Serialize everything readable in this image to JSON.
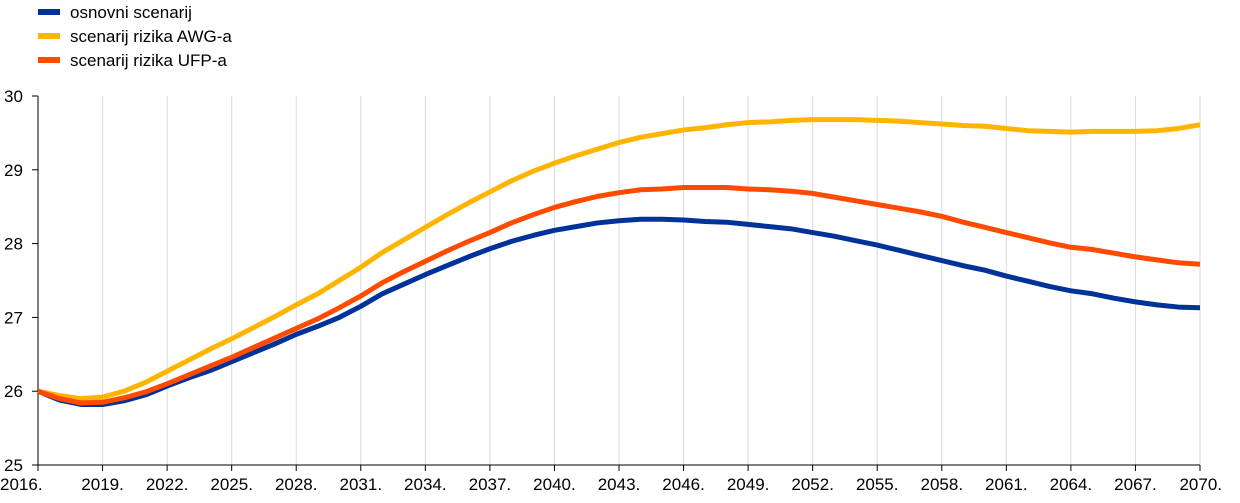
{
  "chart_data": {
    "type": "line",
    "title": "",
    "xlabel": "",
    "ylabel": "",
    "xlim": [
      2016,
      2070
    ],
    "ylim": [
      25,
      30
    ],
    "yticks": [
      25,
      26,
      27,
      28,
      29,
      30
    ],
    "xticks": [
      2016,
      2019,
      2022,
      2025,
      2028,
      2031,
      2034,
      2037,
      2040,
      2043,
      2046,
      2049,
      2052,
      2055,
      2058,
      2061,
      2064,
      2067,
      2070
    ],
    "xtick_labels": [
      "2016.",
      "2019.",
      "2022.",
      "2025.",
      "2028.",
      "2031.",
      "2034.",
      "2037.",
      "2040.",
      "2043.",
      "2046.",
      "2049.",
      "2052.",
      "2055.",
      "2058.",
      "2061.",
      "2064.",
      "2067.",
      "2070."
    ],
    "ytick_labels": [
      "25",
      "26",
      "27",
      "28",
      "29",
      "30"
    ],
    "grid": "vertical",
    "legend_position": "top-left",
    "series": [
      {
        "name": "osnovni scenarij",
        "color": "#003299",
        "x": [
          2016,
          2017,
          2018,
          2019,
          2020,
          2021,
          2022,
          2023,
          2024,
          2025,
          2026,
          2027,
          2028,
          2029,
          2030,
          2031,
          2032,
          2033,
          2034,
          2035,
          2036,
          2037,
          2038,
          2039,
          2040,
          2041,
          2042,
          2043,
          2044,
          2045,
          2046,
          2047,
          2048,
          2049,
          2050,
          2051,
          2052,
          2053,
          2054,
          2055,
          2056,
          2057,
          2058,
          2059,
          2060,
          2061,
          2062,
          2063,
          2064,
          2065,
          2066,
          2067,
          2068,
          2069,
          2070
        ],
        "values": [
          26.0,
          25.88,
          25.82,
          25.82,
          25.87,
          25.95,
          26.07,
          26.18,
          26.28,
          26.4,
          26.52,
          26.64,
          26.77,
          26.88,
          27.0,
          27.15,
          27.32,
          27.45,
          27.58,
          27.7,
          27.82,
          27.93,
          28.03,
          28.11,
          28.18,
          28.23,
          28.28,
          28.31,
          28.33,
          28.33,
          28.32,
          28.3,
          28.29,
          28.26,
          28.23,
          28.2,
          28.15,
          28.1,
          28.04,
          27.98,
          27.91,
          27.84,
          27.77,
          27.7,
          27.64,
          27.56,
          27.49,
          27.42,
          27.36,
          27.32,
          27.26,
          27.21,
          27.17,
          27.14,
          27.13
        ]
      },
      {
        "name": "scenarij rizika AWG-a",
        "color": "#ffb400",
        "x": [
          2016,
          2017,
          2018,
          2019,
          2020,
          2021,
          2022,
          2023,
          2024,
          2025,
          2026,
          2027,
          2028,
          2029,
          2030,
          2031,
          2032,
          2033,
          2034,
          2035,
          2036,
          2037,
          2038,
          2039,
          2040,
          2041,
          2042,
          2043,
          2044,
          2045,
          2046,
          2047,
          2048,
          2049,
          2050,
          2051,
          2052,
          2053,
          2054,
          2055,
          2056,
          2057,
          2058,
          2059,
          2060,
          2061,
          2062,
          2063,
          2064,
          2065,
          2066,
          2067,
          2068,
          2069,
          2070
        ],
        "values": [
          26.0,
          25.94,
          25.9,
          25.92,
          26.0,
          26.12,
          26.27,
          26.42,
          26.57,
          26.71,
          26.86,
          27.01,
          27.17,
          27.32,
          27.5,
          27.68,
          27.88,
          28.05,
          28.22,
          28.39,
          28.55,
          28.7,
          28.85,
          28.98,
          29.09,
          29.19,
          29.28,
          29.37,
          29.44,
          29.49,
          29.54,
          29.57,
          29.61,
          29.64,
          29.65,
          29.67,
          29.68,
          29.68,
          29.68,
          29.67,
          29.66,
          29.64,
          29.62,
          29.6,
          29.59,
          29.56,
          29.53,
          29.52,
          29.51,
          29.52,
          29.52,
          29.52,
          29.53,
          29.56,
          29.61
        ]
      },
      {
        "name": "scenarij rizika UFP-a",
        "color": "#ff4b00",
        "x": [
          2016,
          2017,
          2018,
          2019,
          2020,
          2021,
          2022,
          2023,
          2024,
          2025,
          2026,
          2027,
          2028,
          2029,
          2030,
          2031,
          2032,
          2033,
          2034,
          2035,
          2036,
          2037,
          2038,
          2039,
          2040,
          2041,
          2042,
          2043,
          2044,
          2045,
          2046,
          2047,
          2048,
          2049,
          2050,
          2051,
          2052,
          2053,
          2054,
          2055,
          2056,
          2057,
          2058,
          2059,
          2060,
          2061,
          2062,
          2063,
          2064,
          2065,
          2066,
          2067,
          2068,
          2069,
          2070
        ],
        "values": [
          26.0,
          25.9,
          25.84,
          25.85,
          25.91,
          25.99,
          26.1,
          26.22,
          26.34,
          26.46,
          26.59,
          26.72,
          26.85,
          26.98,
          27.13,
          27.29,
          27.47,
          27.62,
          27.76,
          27.9,
          28.03,
          28.15,
          28.28,
          28.39,
          28.49,
          28.57,
          28.64,
          28.69,
          28.73,
          28.74,
          28.76,
          28.76,
          28.76,
          28.74,
          28.73,
          28.71,
          28.68,
          28.63,
          28.58,
          28.53,
          28.48,
          28.43,
          28.37,
          28.29,
          28.22,
          28.15,
          28.08,
          28.01,
          27.95,
          27.92,
          27.87,
          27.82,
          27.78,
          27.74,
          27.72
        ]
      }
    ]
  }
}
